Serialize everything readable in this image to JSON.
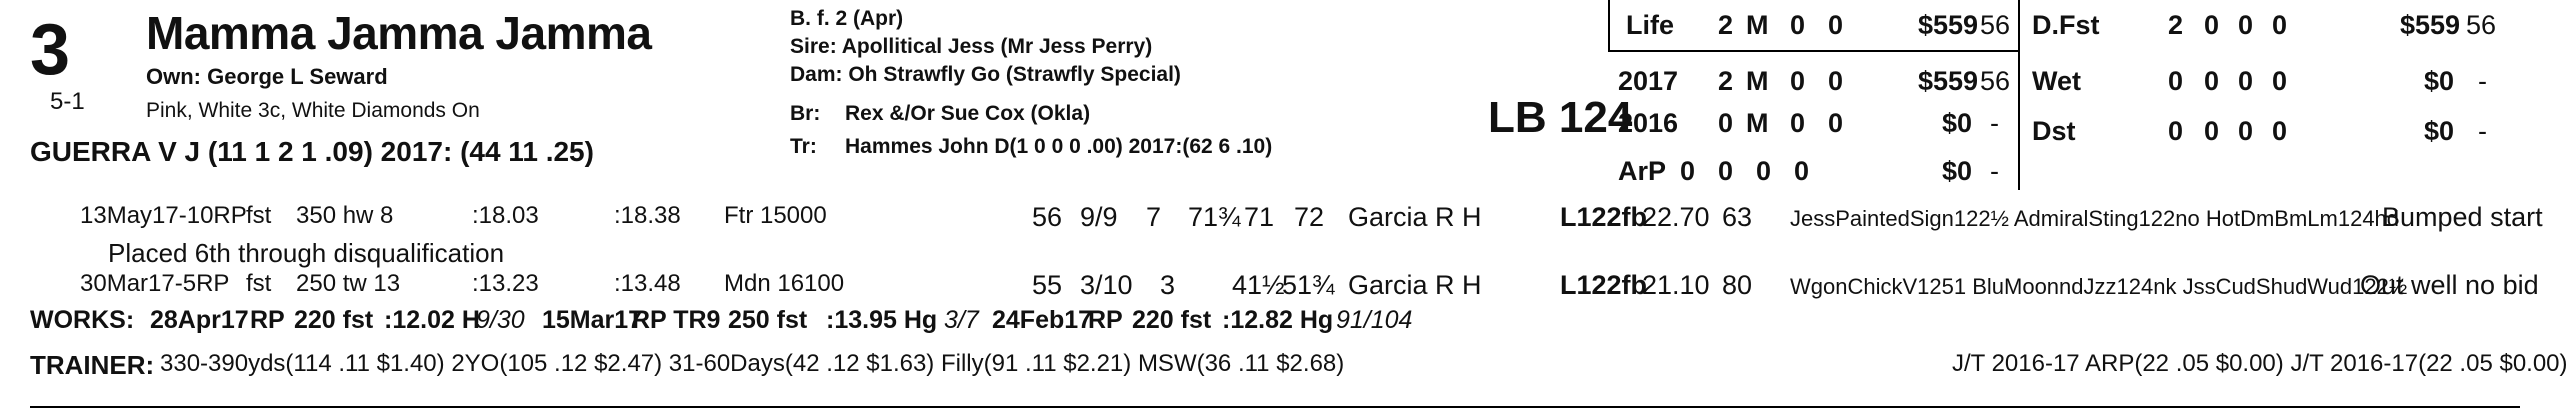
{
  "horse": {
    "post": "3",
    "odds": "5-1",
    "name": "Mamma Jamma Jamma",
    "owner": "Own: George L Seward",
    "silks": "Pink, White 3c, White Diamonds On",
    "jockey": "GUERRA V J (11 1 2 1 .09) 2017: (44 11 .25)"
  },
  "pedigree": {
    "sex_age": "B. f. 2 (Apr)",
    "sire": "Sire: Apollitical Jess (Mr Jess Perry)",
    "dam": "Dam: Oh Strawfly Go (Strawfly Special)",
    "breeder_label": "Br:",
    "breeder": "Rex &/Or Sue Cox (Okla)",
    "trainer_label": "Tr:",
    "trainer": "Hammes John D(1 0 0 0 .00)  2017:(62 6 .10)"
  },
  "weight": "LB 124",
  "stats_left": [
    {
      "label": "Life",
      "starts": "2",
      "w": "M",
      "p": "0",
      "s": "0",
      "earn": "$559",
      "spd": "56"
    },
    {
      "label": "2017",
      "starts": "2",
      "w": "M",
      "p": "0",
      "s": "0",
      "earn": "$559",
      "spd": "56"
    },
    {
      "label": "2016",
      "starts": "0",
      "w": "M",
      "p": "0",
      "s": "0",
      "earn": "$0",
      "spd": "-"
    },
    {
      "label": "ArP",
      "starts": "0",
      "w": "0",
      "p": "0",
      "s": "0",
      "earn": "$0",
      "spd": "-"
    }
  ],
  "stats_right": [
    {
      "label": "D.Fst",
      "starts": "2",
      "w": "0",
      "p": "0",
      "s": "0",
      "earn": "$559",
      "spd": "56"
    },
    {
      "label": "Wet",
      "starts": "0",
      "w": "0",
      "p": "0",
      "s": "0",
      "earn": "$0",
      "spd": "-"
    },
    {
      "label": "Dst",
      "starts": "0",
      "w": "0",
      "p": "0",
      "s": "0",
      "earn": "$0",
      "spd": "-"
    }
  ],
  "races": [
    {
      "date": "13May17-10RP",
      "cond": "fst",
      "dist": "350 hw 8",
      "f1": ":18.03",
      "f2": ":18.38",
      "race": "Ftr 15000",
      "spd": "56",
      "pp": "9/9",
      "st": "7",
      "c1": "71¾",
      "c2": "71",
      "fin": "72",
      "jockey": "Garcia R H",
      "med": "L122fb",
      "odds": "22.70",
      "fig": "63",
      "top3": "JessPaintedSign122½ AdmiralSting122no HotDmBmLm124hd",
      "comment": "Bumped start"
    },
    {
      "date": "30Mar17-5RP",
      "cond": "fst",
      "dist": "250 tw 13",
      "f1": ":13.23",
      "f2": ":13.48",
      "race": "Mdn 16100",
      "spd": "55",
      "pp": "3/10",
      "st": "3",
      "c1": "41½",
      "c2": "51¾",
      "fin": "",
      "jockey": "Garcia R H",
      "med": "L122fb",
      "odds": "21.10",
      "fig": "80",
      "top3": "WgonChickV1251 BluMoonndJzz124nk JssCudShudWud122½",
      "comment": "Out well no bid"
    }
  ],
  "dq_note": "Placed 6th through disqualification",
  "works": {
    "label": "WORKS:",
    "items": [
      {
        "date": "28Apr17",
        "track": "RP",
        "dist": "220 fst",
        "time": ":12.02 H",
        "rank": "9/30"
      },
      {
        "date": "15Mar17",
        "track": "RP TR9",
        "dist": "250 fst",
        "time": ":13.95 Hg",
        "rank": "3/7"
      },
      {
        "date": "24Feb17",
        "track": "RP",
        "dist": "220 fst",
        "time": ":12.82 Hg",
        "rank": "91/104"
      }
    ]
  },
  "trainer_stats": {
    "label": "TRAINER:",
    "text": "330-390yds(114 .11 $1.40) 2YO(105 .12 $2.47) 31-60Days(42 .12 $1.63) Filly(91 .11 $2.21) MSW(36 .11 $2.68)",
    "jt": "J/T 2016-17 ARP(22 .05 $0.00)  J/T 2016-17(22 .05 $0.00)"
  }
}
